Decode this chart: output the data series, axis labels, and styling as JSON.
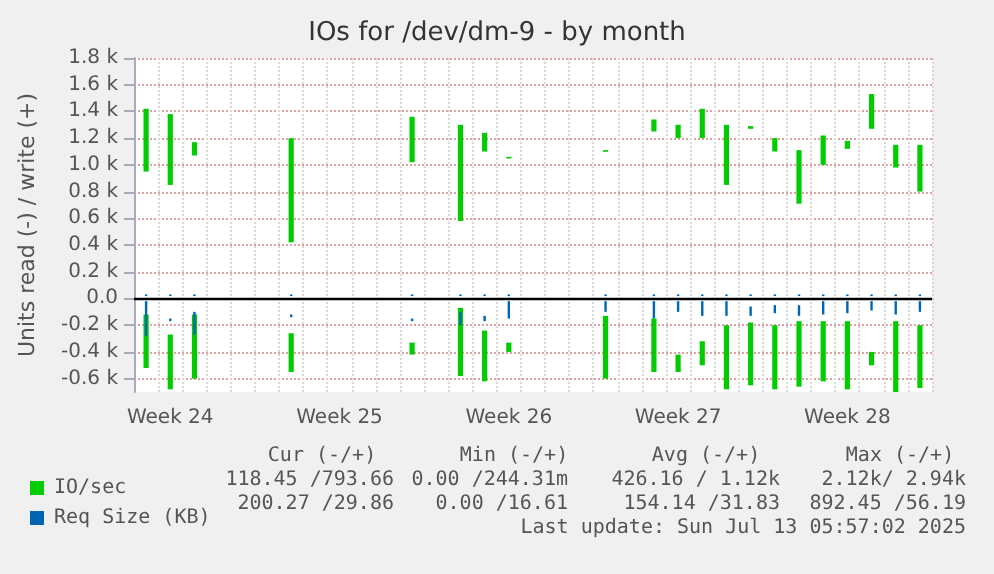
{
  "chart_data": {
    "type": "bar",
    "title": "IOs for /dev/dm-9 - by month",
    "ylabel": "Units read (-) / write (+)",
    "categories": [
      null,
      "Week 24",
      null,
      null,
      null,
      null,
      null,
      null,
      "Week 25",
      null,
      null,
      null,
      null,
      null,
      null,
      "Week 26",
      null,
      null,
      null,
      null,
      null,
      null,
      "Week 27",
      null,
      null,
      null,
      null,
      null,
      null,
      "Week 28",
      null,
      null,
      null
    ],
    "ylim": [
      -700,
      1800
    ],
    "yticks": [
      {
        "value": -600,
        "label": "-0.6 k"
      },
      {
        "value": -400,
        "label": "-0.4 k"
      },
      {
        "value": -200,
        "label": "-0.2 k"
      },
      {
        "value": 0,
        "label": "0.0"
      },
      {
        "value": 200,
        "label": "0.2 k"
      },
      {
        "value": 400,
        "label": "0.4 k"
      },
      {
        "value": 600,
        "label": "0.6 k"
      },
      {
        "value": 800,
        "label": "0.8 k"
      },
      {
        "value": 1000,
        "label": "1.0 k"
      },
      {
        "value": 1200,
        "label": "1.2 k"
      },
      {
        "value": 1400,
        "label": "1.4 k"
      },
      {
        "value": 1600,
        "label": "1.6 k"
      },
      {
        "value": 1800,
        "label": "1.8 k"
      }
    ],
    "grid": true,
    "legend": "bottom left",
    "ref_lines": [
      {
        "axis": "y",
        "value": 0,
        "color": "#000000"
      }
    ],
    "annotations": [
      "Cur (-/+)",
      "Min (-/+)",
      "Avg (-/+)",
      "Max (-/+)",
      "118.45 /793.66",
      "0.00 /244.31m",
      "426.16 / 1.12k",
      "2.12k/ 2.94k",
      "200.27 /29.86",
      "0.00 /16.61",
      "154.14 /31.83",
      "892.45 /56.19",
      "Last update: Sun Jul 13 05:57:02 2025"
    ],
    "series": [
      {
        "name": "IO/sec",
        "color": "#00cc00",
        "base": [
          950,
          850,
          1070,
          null,
          null,
          null,
          420,
          null,
          null,
          null,
          null,
          1020,
          null,
          580,
          1100,
          1050,
          null,
          null,
          null,
          1100,
          null,
          1250,
          1200,
          1200,
          850,
          1270,
          1100,
          710,
          1000,
          1120,
          1270,
          980,
          800
        ],
        "values": [
          470,
          530,
          100,
          null,
          null,
          null,
          780,
          null,
          null,
          null,
          null,
          340,
          null,
          720,
          140,
          10,
          null,
          null,
          null,
          10,
          null,
          90,
          100,
          220,
          450,
          20,
          100,
          400,
          220,
          60,
          260,
          170,
          350
        ]
      },
      {
        "color": "#00cc00",
        "base": [
          -520,
          -680,
          -600,
          null,
          null,
          null,
          -550,
          null,
          null,
          null,
          null,
          -420,
          null,
          -580,
          -620,
          -400,
          null,
          null,
          null,
          -600,
          null,
          -550,
          -550,
          -500,
          -680,
          -650,
          -680,
          -660,
          -620,
          -680,
          -500,
          -700,
          -670
        ],
        "values": [
          400,
          410,
          480,
          null,
          null,
          null,
          290,
          null,
          null,
          null,
          null,
          90,
          null,
          510,
          380,
          70,
          null,
          null,
          null,
          470,
          null,
          400,
          130,
          180,
          480,
          470,
          480,
          490,
          450,
          510,
          100,
          530,
          470
        ]
      },
      {
        "name": "Req Size (KB)",
        "color": "#0066b3",
        "base": [
          20,
          20,
          20,
          null,
          null,
          null,
          20,
          null,
          null,
          null,
          null,
          20,
          null,
          20,
          20,
          20,
          null,
          null,
          null,
          20,
          null,
          20,
          20,
          20,
          20,
          20,
          20,
          20,
          20,
          20,
          20,
          20,
          20
        ],
        "values": [
          10,
          10,
          10,
          null,
          null,
          null,
          10,
          null,
          null,
          null,
          null,
          10,
          null,
          10,
          10,
          10,
          null,
          null,
          null,
          10,
          null,
          10,
          10,
          10,
          10,
          10,
          10,
          10,
          10,
          10,
          10,
          10,
          10
        ]
      },
      {
        "color": "#0066b3",
        "base": [
          -280,
          -170,
          -270,
          null,
          null,
          null,
          -140,
          null,
          null,
          null,
          null,
          -170,
          null,
          -200,
          -170,
          -150,
          null,
          null,
          null,
          -100,
          null,
          -150,
          -100,
          -130,
          -130,
          -130,
          -110,
          -130,
          -120,
          -110,
          -90,
          -120,
          -100
        ],
        "values": [
          260,
          20,
          170,
          null,
          null,
          null,
          20,
          null,
          null,
          null,
          null,
          20,
          null,
          100,
          40,
          130,
          null,
          null,
          null,
          80,
          null,
          130,
          80,
          110,
          110,
          70,
          60,
          80,
          100,
          90,
          70,
          100,
          80
        ]
      }
    ]
  }
}
